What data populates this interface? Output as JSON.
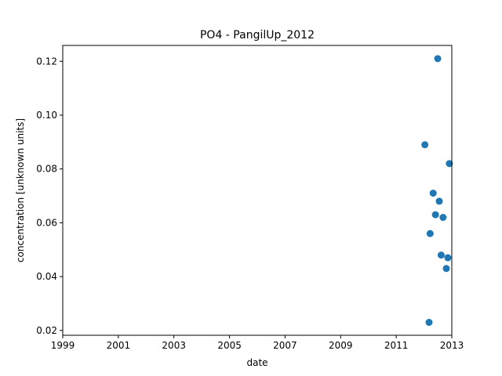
{
  "chart_data": {
    "type": "scatter",
    "title": "PO4 - PangilUp_2012",
    "xlabel": "date",
    "ylabel": "concentration [unknown units]",
    "xlim": [
      "1999-01-01",
      "2013-01-01"
    ],
    "ylim": [
      0.0182,
      0.1259
    ],
    "x_ticks": [
      "1999",
      "2001",
      "2003",
      "2005",
      "2007",
      "2009",
      "2011",
      "2013"
    ],
    "y_ticks": [
      "0.02",
      "0.04",
      "0.06",
      "0.08",
      "0.10",
      "0.12"
    ],
    "grid": false,
    "series": [
      {
        "color": "#1f77b4",
        "marker": "circle",
        "points": [
          {
            "x": "2012-01-13",
            "y": 0.089
          },
          {
            "x": "2012-03-08",
            "y": 0.023
          },
          {
            "x": "2012-03-22",
            "y": 0.056
          },
          {
            "x": "2012-05-01",
            "y": 0.071
          },
          {
            "x": "2012-05-31",
            "y": 0.063
          },
          {
            "x": "2012-06-30",
            "y": 0.121
          },
          {
            "x": "2012-07-20",
            "y": 0.068
          },
          {
            "x": "2012-08-14",
            "y": 0.048
          },
          {
            "x": "2012-09-08",
            "y": 0.062
          },
          {
            "x": "2012-10-21",
            "y": 0.043
          },
          {
            "x": "2012-11-10",
            "y": 0.047
          },
          {
            "x": "2012-11-30",
            "y": 0.082
          }
        ]
      }
    ]
  }
}
